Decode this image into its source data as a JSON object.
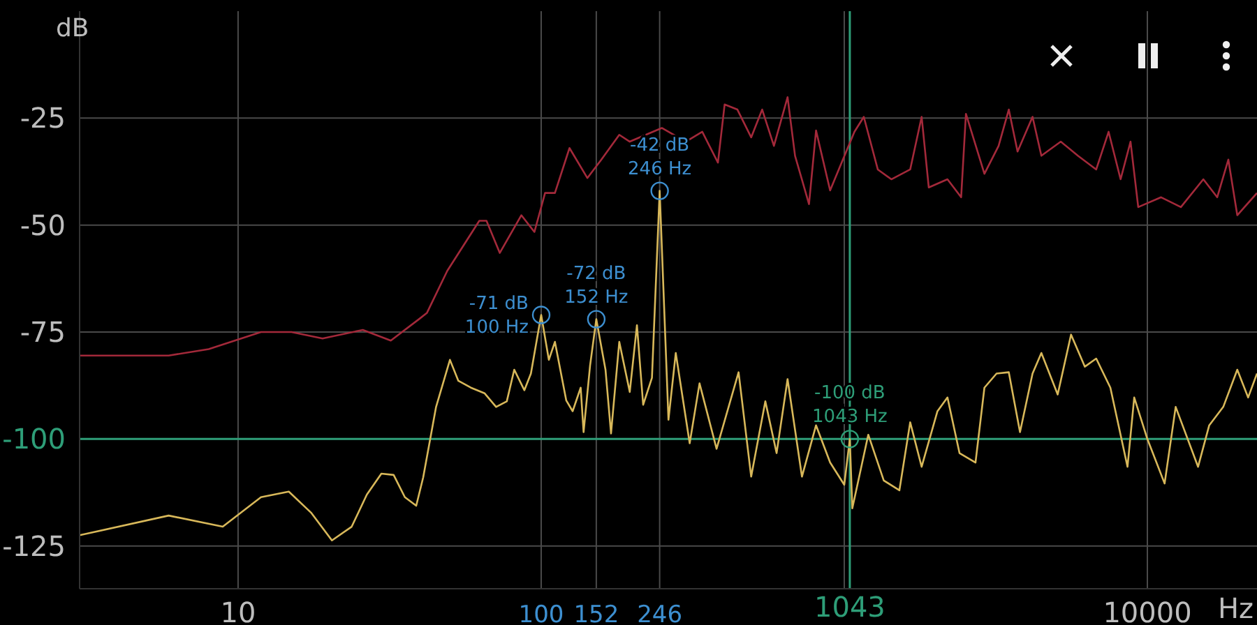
{
  "chart_data": {
    "type": "line",
    "ylabel": "dB",
    "xlabel": "Hz",
    "log": "x",
    "xlim": [
      3,
      23000
    ],
    "ylim": [
      -135,
      0
    ],
    "xticks": [
      10,
      100,
      152,
      246,
      {
        "value": 1000,
        "label": null
      },
      10000
    ],
    "yticks": [
      -25,
      -50,
      -75,
      -100,
      -125
    ],
    "grid": true,
    "legend": false,
    "marker": "none",
    "line_style": "solid",
    "series": [
      {
        "color": "#a3293a",
        "x": [
          3,
          5.9,
          8,
          11.9,
          15,
          19,
          25.8,
          31.9,
          39.5,
          42,
          49,
          62.5,
          66,
          73,
          86,
          95,
          103,
          111,
          124,
          142,
          158,
          181,
          196,
          250,
          300,
          340,
          383,
          403,
          444,
          493,
          536,
          586,
          650,
          688,
          765,
          807,
          898,
          1080,
          1160,
          1290,
          1430,
          1650,
          1800,
          1900,
          2190,
          2430,
          2520,
          2900,
          3230,
          3490,
          3730,
          4180,
          4470,
          5180,
          5900,
          6780,
          7450,
          8160,
          8800,
          9330,
          11100,
          12900,
          15300,
          17000,
          18500,
          19800,
          23000
        ],
        "values": [
          -80.5,
          -80.5,
          -79,
          -75,
          -75,
          -76.5,
          -74.5,
          -77,
          -72,
          -70.5,
          -60.7,
          -49,
          -49,
          -56.5,
          -47.7,
          -51.6,
          -42.5,
          -42.5,
          -32,
          -39,
          -34.7,
          -28.9,
          -30.5,
          -27.3,
          -30.5,
          -28.2,
          -35.4,
          -21.8,
          -23,
          -29.5,
          -23,
          -31.5,
          -20.1,
          -33.8,
          -45.1,
          -27.9,
          -41.9,
          -28.2,
          -24.7,
          -37,
          -39.3,
          -37,
          -24.7,
          -41.2,
          -39.3,
          -43.5,
          -24,
          -38,
          -31.5,
          -23,
          -32.8,
          -24.7,
          -33.8,
          -30.5,
          -33.8,
          -37,
          -28.2,
          -39.3,
          -30.5,
          -45.8,
          -43.5,
          -45.8,
          -39.3,
          -43.5,
          -34.7,
          -47.7,
          -42.5
        ]
      },
      {
        "color": "#d8b85a",
        "x": [
          3,
          5.9,
          8.9,
          11.9,
          14.7,
          17.4,
          20.4,
          23.7,
          26.6,
          29.7,
          32.6,
          35.5,
          38.7,
          40.8,
          45,
          50,
          53.3,
          58.6,
          65,
          71,
          77,
          81.5,
          88,
          92.5,
          100,
          106,
          111,
          121,
          127,
          135,
          138,
          145,
          152,
          163,
          170,
          181,
          196,
          207,
          217,
          232,
          246,
          263,
          278,
          309,
          333,
          379,
          448,
          493,
          549,
          598,
          650,
          725,
          807,
          898,
          1000,
          1043,
          1063,
          1200,
          1350,
          1520,
          1650,
          1800,
          2030,
          2190,
          2400,
          2710,
          2900,
          3180,
          3490,
          3800,
          4180,
          4470,
          5060,
          5600,
          6220,
          6780,
          7550,
          8600,
          9050,
          10000,
          11400,
          12400,
          14700,
          16000,
          17800,
          19800,
          21500,
          23000
        ],
        "values": [
          -122.5,
          -117.9,
          -120.5,
          -113.6,
          -112.3,
          -117.2,
          -123.7,
          -120.5,
          -113,
          -108.1,
          -108.4,
          -113.6,
          -115.6,
          -109,
          -92.5,
          -81.5,
          -86.4,
          -88,
          -89.3,
          -92.5,
          -91.2,
          -83.8,
          -88.6,
          -84.7,
          -71,
          -81.5,
          -77.3,
          -91,
          -93.5,
          -88,
          -98.4,
          -82.8,
          -72,
          -83.8,
          -98.7,
          -77.3,
          -89,
          -73.4,
          -92,
          -85.7,
          -42,
          -95.5,
          -79.9,
          -101,
          -87,
          -102.3,
          -84.4,
          -108.8,
          -91.2,
          -103.3,
          -86,
          -108.8,
          -96.8,
          -105.5,
          -110.7,
          -100,
          -116.2,
          -99,
          -109.7,
          -112,
          -96.1,
          -106.5,
          -93.5,
          -90.3,
          -103.3,
          -105.5,
          -88,
          -84.7,
          -84.4,
          -98.4,
          -84.7,
          -79.9,
          -89.6,
          -75.6,
          -83.1,
          -81.2,
          -88,
          -106.5,
          -90.3,
          -100,
          -110.4,
          -92.5,
          -106.5,
          -96.8,
          -92.5,
          -83.8,
          -90.3,
          -84.7
        ]
      }
    ],
    "ref_lines": [
      {
        "axis": "x",
        "value": 1043,
        "label": "1043",
        "color": "#2e9e78"
      },
      {
        "axis": "y",
        "value": -100,
        "label": null,
        "color": "#2e9e78"
      }
    ],
    "annotations": [
      {
        "text": "-71 dB\n100 Hz",
        "x": 100,
        "y": -71
      },
      {
        "text": "-72 dB\n152 Hz",
        "x": 152,
        "y": -72
      },
      {
        "text": "-42 dB\n246 Hz",
        "x": 246,
        "y": -42
      },
      {
        "text": "-100 dB\n1043 Hz",
        "x": 1043,
        "y": -100
      }
    ]
  }
}
